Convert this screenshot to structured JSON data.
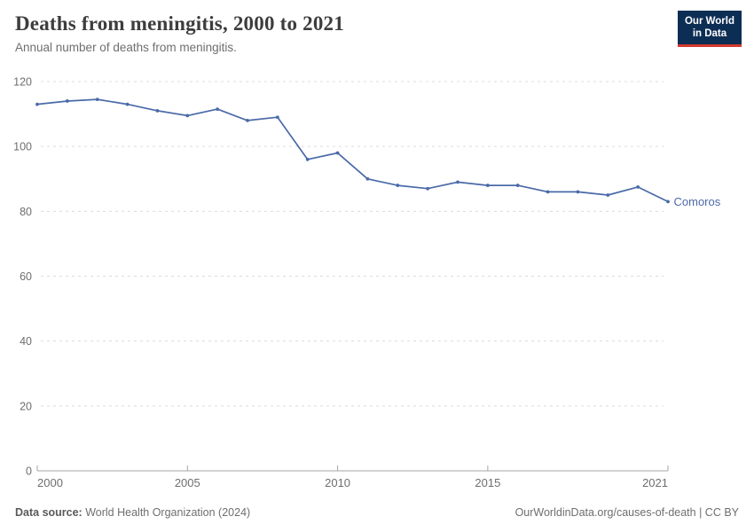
{
  "header": {
    "title": "Deaths from meningitis, 2000 to 2021",
    "subtitle": "Annual number of deaths from meningitis.",
    "logo": {
      "line1": "Our World",
      "line2": "in Data",
      "bg_color": "#0d2e54",
      "accent_color": "#d43830"
    }
  },
  "chart_data": {
    "type": "line",
    "title": "Deaths from meningitis, 2000 to 2021",
    "xlabel": "",
    "ylabel": "",
    "xlim": [
      2000,
      2021
    ],
    "ylim": [
      0,
      120
    ],
    "x_ticks": [
      2000,
      2005,
      2010,
      2015,
      2021
    ],
    "y_ticks": [
      0,
      20,
      40,
      60,
      80,
      100,
      120
    ],
    "grid": "horizontal-dashed",
    "legend_position": "end-of-line",
    "x": [
      2000,
      2001,
      2002,
      2003,
      2004,
      2005,
      2006,
      2007,
      2008,
      2009,
      2010,
      2011,
      2012,
      2013,
      2014,
      2015,
      2016,
      2017,
      2018,
      2019,
      2020,
      2021
    ],
    "series": [
      {
        "name": "Comoros",
        "color": "#4a6aa8",
        "values": [
          113,
          114,
          114.5,
          113,
          111,
          109.5,
          111.5,
          108,
          109,
          96,
          98,
          90,
          88,
          87,
          89,
          88,
          88,
          86,
          86,
          85,
          87.5,
          83
        ]
      }
    ]
  },
  "theme": {
    "grid_color": "#dcdcdc",
    "axis_color": "#a6a6a6",
    "tick_label_color": "#6e6e6e"
  },
  "footer": {
    "source_label": "Data source:",
    "source_value": "World Health Organization (2024)",
    "attribution": "OurWorldinData.org/causes-of-death | CC BY"
  }
}
